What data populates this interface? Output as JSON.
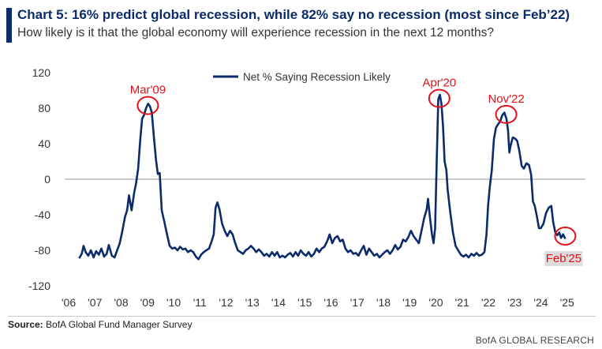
{
  "header": {
    "title": "Chart 5: 16% predict global recession, while 82% say no recession (most since Feb’22)",
    "subtitle": "How likely is it that the global economy will experience recession in the next 12 months?"
  },
  "footer": {
    "source_label": "Source:",
    "source_text": "BofA Global Fund Manager Survey",
    "brand": "BofA GLOBAL RESEARCH"
  },
  "chart_data": {
    "type": "line",
    "xlabel": "",
    "ylabel": "",
    "ylim": [
      -120,
      120
    ],
    "yticks": [
      -120,
      -80,
      -40,
      0,
      40,
      80,
      120
    ],
    "xlim": [
      2006.0,
      2025.85
    ],
    "xtick_labels": [
      "'06",
      "'07",
      "'08",
      "'09",
      "'10",
      "'11",
      "'12",
      "'13",
      "'14",
      "'15",
      "'16",
      "'17",
      "'18",
      "'19",
      "'20",
      "'21",
      "'22",
      "'23",
      "'24",
      "'25"
    ],
    "zero_line": true,
    "grid": false,
    "legend_position": "top-center",
    "line_color": "#0b2b6b",
    "annotation_color": "#e3111b",
    "series": [
      {
        "name": "Net % Saying Recession Likely",
        "points": [
          [
            2006.55,
            -89
          ],
          [
            2006.65,
            -84
          ],
          [
            2006.72,
            -75
          ],
          [
            2006.8,
            -82
          ],
          [
            2006.9,
            -86
          ],
          [
            2007.0,
            -80
          ],
          [
            2007.1,
            -88
          ],
          [
            2007.2,
            -81
          ],
          [
            2007.3,
            -85
          ],
          [
            2007.4,
            -78
          ],
          [
            2007.5,
            -87
          ],
          [
            2007.6,
            -84
          ],
          [
            2007.68,
            -74
          ],
          [
            2007.8,
            -86
          ],
          [
            2007.9,
            -88
          ],
          [
            2008.0,
            -80
          ],
          [
            2008.1,
            -72
          ],
          [
            2008.2,
            -58
          ],
          [
            2008.3,
            -42
          ],
          [
            2008.38,
            -35
          ],
          [
            2008.45,
            -18
          ],
          [
            2008.55,
            -35
          ],
          [
            2008.65,
            -15
          ],
          [
            2008.72,
            -5
          ],
          [
            2008.8,
            12
          ],
          [
            2008.88,
            45
          ],
          [
            2008.95,
            68
          ],
          [
            2009.02,
            72
          ],
          [
            2009.1,
            80
          ],
          [
            2009.18,
            85
          ],
          [
            2009.25,
            82
          ],
          [
            2009.32,
            75
          ],
          [
            2009.4,
            48
          ],
          [
            2009.48,
            22
          ],
          [
            2009.55,
            6
          ],
          [
            2009.62,
            7
          ],
          [
            2009.7,
            -35
          ],
          [
            2009.8,
            -48
          ],
          [
            2009.9,
            -62
          ],
          [
            2010.0,
            -75
          ],
          [
            2010.1,
            -78
          ],
          [
            2010.2,
            -77
          ],
          [
            2010.3,
            -80
          ],
          [
            2010.4,
            -76
          ],
          [
            2010.5,
            -79
          ],
          [
            2010.6,
            -78
          ],
          [
            2010.7,
            -82
          ],
          [
            2010.8,
            -80
          ],
          [
            2010.9,
            -82
          ],
          [
            2011.0,
            -87
          ],
          [
            2011.1,
            -90
          ],
          [
            2011.2,
            -85
          ],
          [
            2011.3,
            -82
          ],
          [
            2011.4,
            -80
          ],
          [
            2011.5,
            -78
          ],
          [
            2011.6,
            -70
          ],
          [
            2011.68,
            -62
          ],
          [
            2011.75,
            -32
          ],
          [
            2011.82,
            -26
          ],
          [
            2011.9,
            -34
          ],
          [
            2012.0,
            -50
          ],
          [
            2012.1,
            -58
          ],
          [
            2012.2,
            -64
          ],
          [
            2012.3,
            -58
          ],
          [
            2012.4,
            -62
          ],
          [
            2012.5,
            -72
          ],
          [
            2012.6,
            -80
          ],
          [
            2012.7,
            -82
          ],
          [
            2012.8,
            -84
          ],
          [
            2012.9,
            -80
          ],
          [
            2013.0,
            -78
          ],
          [
            2013.1,
            -75
          ],
          [
            2013.2,
            -78
          ],
          [
            2013.3,
            -82
          ],
          [
            2013.4,
            -79
          ],
          [
            2013.5,
            -82
          ],
          [
            2013.6,
            -86
          ],
          [
            2013.7,
            -84
          ],
          [
            2013.8,
            -87
          ],
          [
            2013.9,
            -82
          ],
          [
            2014.0,
            -86
          ],
          [
            2014.1,
            -82
          ],
          [
            2014.2,
            -88
          ],
          [
            2014.3,
            -86
          ],
          [
            2014.4,
            -88
          ],
          [
            2014.5,
            -85
          ],
          [
            2014.6,
            -83
          ],
          [
            2014.7,
            -87
          ],
          [
            2014.8,
            -82
          ],
          [
            2014.9,
            -86
          ],
          [
            2015.0,
            -80
          ],
          [
            2015.1,
            -84
          ],
          [
            2015.2,
            -86
          ],
          [
            2015.3,
            -82
          ],
          [
            2015.4,
            -87
          ],
          [
            2015.5,
            -84
          ],
          [
            2015.6,
            -78
          ],
          [
            2015.7,
            -82
          ],
          [
            2015.8,
            -78
          ],
          [
            2015.9,
            -76
          ],
          [
            2016.0,
            -70
          ],
          [
            2016.1,
            -62
          ],
          [
            2016.2,
            -72
          ],
          [
            2016.3,
            -66
          ],
          [
            2016.4,
            -64
          ],
          [
            2016.5,
            -70
          ],
          [
            2016.6,
            -68
          ],
          [
            2016.7,
            -78
          ],
          [
            2016.8,
            -82
          ],
          [
            2016.9,
            -80
          ],
          [
            2017.0,
            -84
          ],
          [
            2017.1,
            -83
          ],
          [
            2017.2,
            -86
          ],
          [
            2017.3,
            -80
          ],
          [
            2017.4,
            -75
          ],
          [
            2017.5,
            -85
          ],
          [
            2017.6,
            -78
          ],
          [
            2017.7,
            -82
          ],
          [
            2017.8,
            -86
          ],
          [
            2017.9,
            -84
          ],
          [
            2018.0,
            -88
          ],
          [
            2018.1,
            -85
          ],
          [
            2018.2,
            -82
          ],
          [
            2018.3,
            -80
          ],
          [
            2018.4,
            -84
          ],
          [
            2018.5,
            -80
          ],
          [
            2018.6,
            -74
          ],
          [
            2018.7,
            -79
          ],
          [
            2018.8,
            -76
          ],
          [
            2018.9,
            -68
          ],
          [
            2019.0,
            -70
          ],
          [
            2019.1,
            -65
          ],
          [
            2019.2,
            -58
          ],
          [
            2019.3,
            -64
          ],
          [
            2019.4,
            -68
          ],
          [
            2019.5,
            -72
          ],
          [
            2019.6,
            -58
          ],
          [
            2019.7,
            -44
          ],
          [
            2019.8,
            -34
          ],
          [
            2019.85,
            -22
          ],
          [
            2019.92,
            -42
          ],
          [
            2020.0,
            -62
          ],
          [
            2020.06,
            -72
          ],
          [
            2020.12,
            -55
          ],
          [
            2020.18,
            20
          ],
          [
            2020.24,
            90
          ],
          [
            2020.3,
            95
          ],
          [
            2020.36,
            85
          ],
          [
            2020.42,
            60
          ],
          [
            2020.48,
            20
          ],
          [
            2020.55,
            10
          ],
          [
            2020.6,
            -12
          ],
          [
            2020.7,
            -38
          ],
          [
            2020.8,
            -60
          ],
          [
            2020.9,
            -75
          ],
          [
            2021.0,
            -80
          ],
          [
            2021.1,
            -85
          ],
          [
            2021.2,
            -87
          ],
          [
            2021.3,
            -85
          ],
          [
            2021.4,
            -88
          ],
          [
            2021.5,
            -84
          ],
          [
            2021.6,
            -86
          ],
          [
            2021.7,
            -83
          ],
          [
            2021.8,
            -86
          ],
          [
            2021.9,
            -85
          ],
          [
            2022.0,
            -82
          ],
          [
            2022.08,
            -62
          ],
          [
            2022.14,
            -30
          ],
          [
            2022.2,
            -10
          ],
          [
            2022.28,
            10
          ],
          [
            2022.36,
            45
          ],
          [
            2022.44,
            58
          ],
          [
            2022.52,
            62
          ],
          [
            2022.6,
            65
          ],
          [
            2022.68,
            72
          ],
          [
            2022.76,
            75
          ],
          [
            2022.84,
            68
          ],
          [
            2022.9,
            55
          ],
          [
            2022.95,
            30
          ],
          [
            2023.0,
            38
          ],
          [
            2023.08,
            47
          ],
          [
            2023.16,
            46
          ],
          [
            2023.25,
            43
          ],
          [
            2023.33,
            32
          ],
          [
            2023.42,
            15
          ],
          [
            2023.5,
            12
          ],
          [
            2023.6,
            18
          ],
          [
            2023.7,
            16
          ],
          [
            2023.78,
            5
          ],
          [
            2023.85,
            -25
          ],
          [
            2023.92,
            -30
          ],
          [
            2024.0,
            -42
          ],
          [
            2024.08,
            -55
          ],
          [
            2024.15,
            -55
          ],
          [
            2024.25,
            -50
          ],
          [
            2024.35,
            -38
          ],
          [
            2024.45,
            -32
          ],
          [
            2024.55,
            -30
          ],
          [
            2024.62,
            -48
          ],
          [
            2024.7,
            -60
          ],
          [
            2024.78,
            -63
          ],
          [
            2024.85,
            -60
          ],
          [
            2024.92,
            -66
          ],
          [
            2025.0,
            -62
          ],
          [
            2025.08,
            -67
          ]
        ]
      }
    ],
    "annotations": [
      {
        "label": "Mar'09",
        "x": 2009.17,
        "y": 83,
        "position": "above"
      },
      {
        "label": "Apr'20",
        "x": 2020.28,
        "y": 91,
        "position": "above"
      },
      {
        "label": "Nov'22",
        "x": 2022.83,
        "y": 73,
        "position": "above"
      },
      {
        "label": "Feb'25",
        "x": 2025.08,
        "y": -64,
        "position": "below"
      }
    ]
  }
}
